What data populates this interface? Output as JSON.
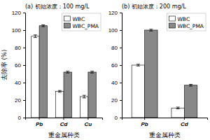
{
  "chart_data": [
    {
      "type": "bar",
      "title": "(a) 初始浓度：100 mg/L",
      "categories": [
        "Pb",
        "Cd",
        "Cu"
      ],
      "series": [
        {
          "name": "WBC",
          "color": "white",
          "values": [
            93,
            30,
            24
          ],
          "errors": [
            1.5,
            1,
            1.5
          ]
        },
        {
          "name": "WBC_PMA",
          "color": "#888888",
          "values": [
            105,
            52,
            52
          ],
          "errors": [
            1,
            1,
            1
          ]
        }
      ],
      "ylim": [
        0,
        120
      ],
      "yticks": [
        0,
        20,
        40,
        60,
        80,
        100,
        120
      ],
      "xlabel": "重金属种类",
      "ylabel": "去除率 (%)",
      "legend": "upper-right"
    },
    {
      "type": "bar",
      "title": "(b) 初始浓度：200 mg/L",
      "categories": [
        "Pb",
        "Cd"
      ],
      "series": [
        {
          "name": "WBC",
          "color": "white",
          "values": [
            60,
            11
          ],
          "errors": [
            1,
            1
          ]
        },
        {
          "name": "WBC_PMA",
          "color": "#888888",
          "values": [
            100,
            37
          ],
          "errors": [
            1,
            1
          ]
        }
      ],
      "ylim": [
        0,
        120
      ],
      "yticks": [
        0,
        20,
        40,
        60,
        80,
        100,
        120
      ],
      "xlabel": "重金属种类",
      "legend": "upper-right"
    }
  ]
}
